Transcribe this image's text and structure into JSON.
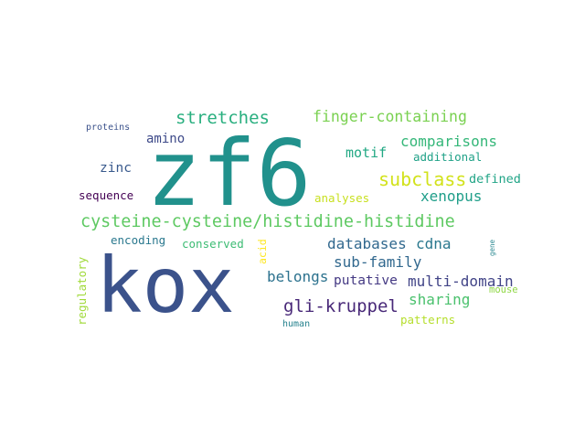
{
  "words": [
    {
      "id": "kox",
      "text": "kox",
      "color": "#3b528b"
    },
    {
      "id": "zf6",
      "text": "zf6",
      "color": "#21918c"
    },
    {
      "id": "cysteine",
      "text": "cysteine-cysteine/histidine-histidine",
      "color": "#5ec962"
    },
    {
      "id": "gli-kruppel",
      "text": "gli-kruppel",
      "color": "#482878"
    },
    {
      "id": "stretches",
      "text": "stretches",
      "color": "#29af7f"
    },
    {
      "id": "finger-containing",
      "text": "finger-containing",
      "color": "#7ad151"
    },
    {
      "id": "subclass",
      "text": "subclass",
      "color": "#d2e21b"
    },
    {
      "id": "comparisons",
      "text": "comparisons",
      "color": "#35b779"
    },
    {
      "id": "xenopus",
      "text": "xenopus",
      "color": "#1f9e89"
    },
    {
      "id": "databases",
      "text": "databases",
      "color": "#31688e"
    },
    {
      "id": "cdna",
      "text": "cdna",
      "color": "#2a788e"
    },
    {
      "id": "sub-family",
      "text": "sub-family",
      "color": "#31688e"
    },
    {
      "id": "multi-domain",
      "text": "multi-domain",
      "color": "#414487"
    },
    {
      "id": "belongs",
      "text": "belongs",
      "color": "#2c728e"
    },
    {
      "id": "putative",
      "text": "putative",
      "color": "#443983"
    },
    {
      "id": "sharing",
      "text": "sharing",
      "color": "#4ac16d"
    },
    {
      "id": "motif",
      "text": "motif",
      "color": "#22a884"
    },
    {
      "id": "amino",
      "text": "amino",
      "color": "#3e4a89"
    },
    {
      "id": "zinc",
      "text": "zinc",
      "color": "#38598c"
    },
    {
      "id": "defined",
      "text": "defined",
      "color": "#20a486"
    },
    {
      "id": "additional",
      "text": "additional",
      "color": "#1fa187"
    },
    {
      "id": "sequence",
      "text": "sequence",
      "color": "#440154"
    },
    {
      "id": "analyses",
      "text": "analyses",
      "color": "#c8e020"
    },
    {
      "id": "encoding",
      "text": "encoding",
      "color": "#2a788e"
    },
    {
      "id": "conserved",
      "text": "conserved",
      "color": "#3dbc74"
    },
    {
      "id": "patterns",
      "text": "patterns",
      "color": "#b5de2b"
    },
    {
      "id": "regulatory",
      "text": "regulatory",
      "color": "#a0da39"
    },
    {
      "id": "acid",
      "text": "acid",
      "color": "#fde725"
    },
    {
      "id": "proteins",
      "text": "proteins",
      "color": "#3b528b"
    },
    {
      "id": "human",
      "text": "human",
      "color": "#26828e"
    },
    {
      "id": "mouse",
      "text": "mouse",
      "color": "#8fd744"
    },
    {
      "id": "gene",
      "text": "gene",
      "color": "#25858e"
    }
  ]
}
